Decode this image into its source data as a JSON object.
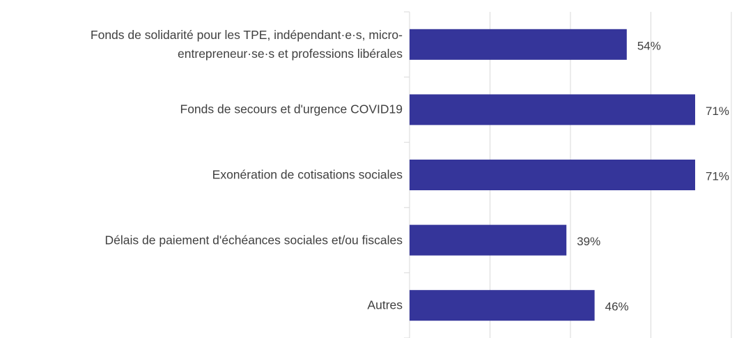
{
  "chart_data": {
    "type": "bar",
    "orientation": "horizontal",
    "categories": [
      "Fonds de solidarité pour les TPE, indépendant·e·s, micro-entrepreneur·se·s et professions libérales",
      "Fonds de secours et d'urgence COVID19",
      "Exonération de cotisations sociales",
      "Délais de paiement d'échéances sociales et/ou fiscales",
      "Autres"
    ],
    "values": [
      54,
      71,
      71,
      39,
      46
    ],
    "value_labels": [
      "54%",
      "71%",
      "71%",
      "39%",
      "46%"
    ],
    "color": "#35359a",
    "xlim": [
      0,
      80
    ],
    "xticks": [
      0,
      20,
      40,
      60,
      80
    ],
    "grid": true
  }
}
